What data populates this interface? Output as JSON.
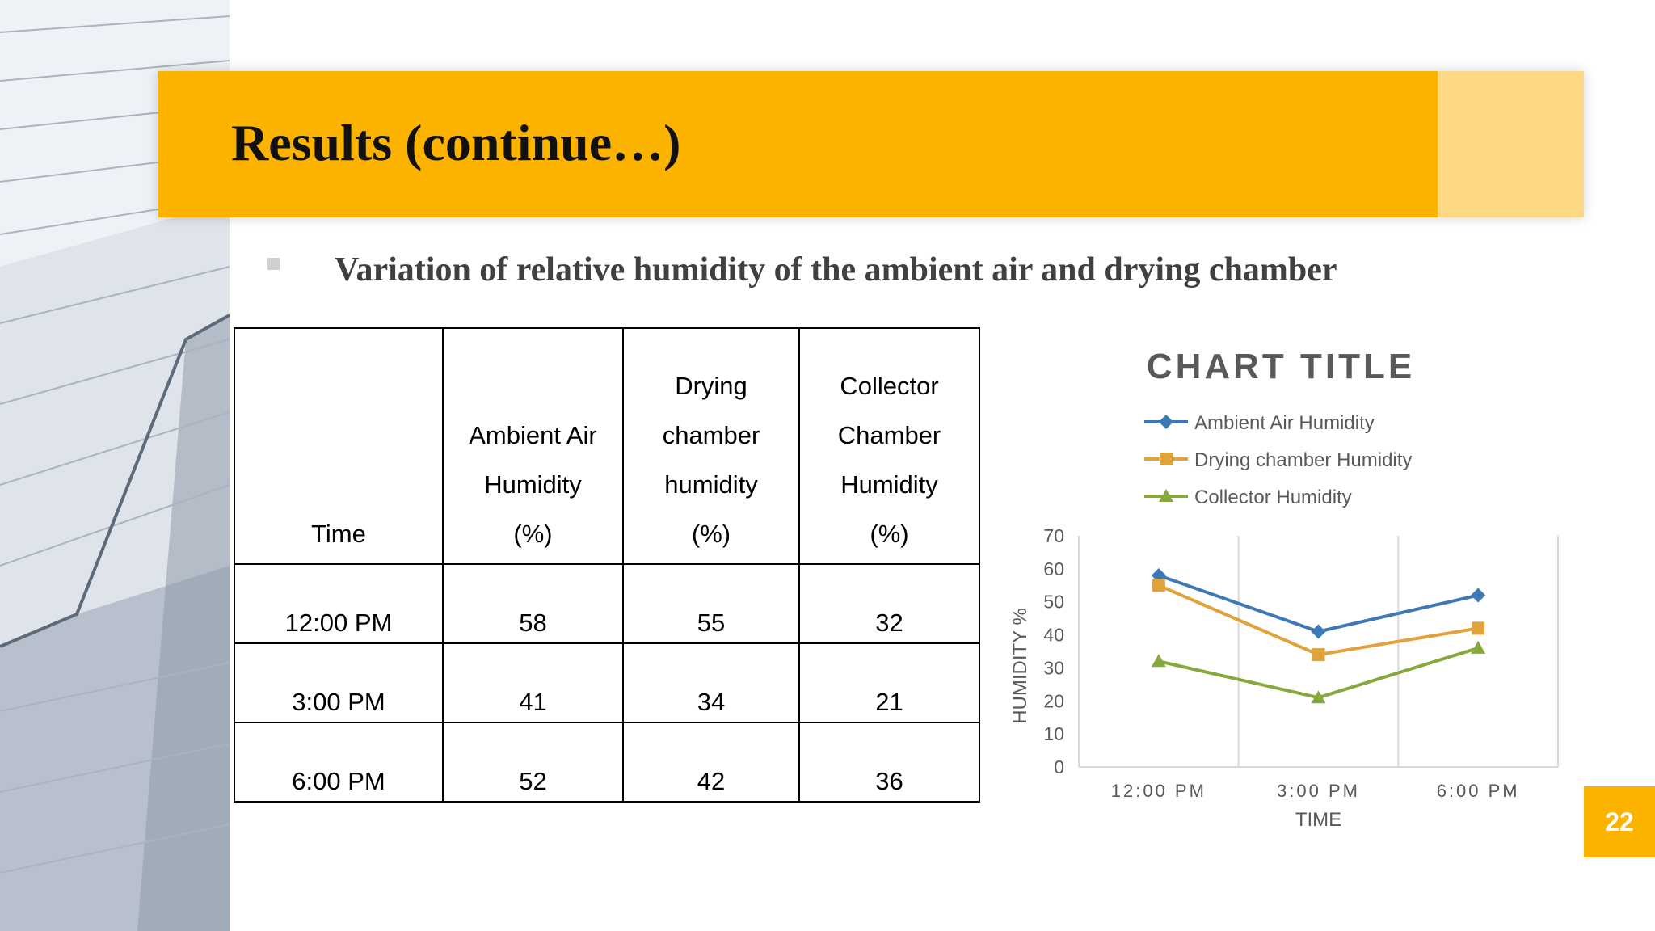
{
  "slide": {
    "title": "Results (continue…)",
    "subtitle": "Variation of relative humidity of the ambient air and drying chamber",
    "page_number": "22",
    "accent_color": "#fcb300"
  },
  "table": {
    "headers": {
      "time": "Time",
      "ambient": [
        "Ambient Air",
        "Humidity",
        "(%)"
      ],
      "drying": [
        "Drying",
        "chamber",
        "humidity",
        "(%)"
      ],
      "collector": [
        "Collector",
        "Chamber",
        "Humidity",
        "(%)"
      ]
    },
    "rows": [
      {
        "time": "12:00 PM",
        "ambient": "58",
        "drying": "55",
        "collector": "32"
      },
      {
        "time": "3:00 PM",
        "ambient": "41",
        "drying": "34",
        "collector": "21"
      },
      {
        "time": "6:00 PM",
        "ambient": "52",
        "drying": "42",
        "collector": "36"
      }
    ]
  },
  "chart_data": {
    "type": "line",
    "title": "CHART TITLE",
    "xlabel": "TIME",
    "ylabel": "HUMIDITY %",
    "categories": [
      "12:00 PM",
      "3:00 PM",
      "6:00 PM"
    ],
    "ylim": [
      0,
      70
    ],
    "yticks": [
      0,
      10,
      20,
      30,
      40,
      50,
      60,
      70
    ],
    "grid": "vertical",
    "legend_position": "top",
    "series": [
      {
        "name": "Ambient Air Humidity",
        "values": [
          58,
          41,
          52
        ],
        "color": "#3d7ab5",
        "marker": "diamond"
      },
      {
        "name": "Drying chamber Humidity",
        "values": [
          55,
          34,
          42
        ],
        "color": "#e0a23a",
        "marker": "square"
      },
      {
        "name": "Collector Humidity",
        "values": [
          32,
          21,
          36
        ],
        "color": "#86a83e",
        "marker": "triangle"
      }
    ]
  }
}
